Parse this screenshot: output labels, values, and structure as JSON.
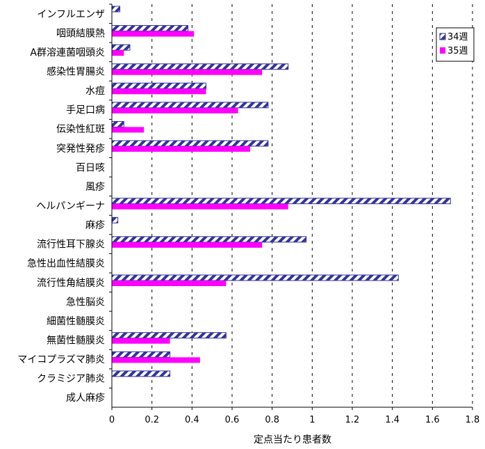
{
  "chart_data": {
    "type": "bar",
    "orientation": "horizontal",
    "categories": [
      "インフルエンザ",
      "咽頭結膜熱",
      "A群溶連菌咽頭炎",
      "感染性胃腸炎",
      "水痘",
      "手足口病",
      "伝染性紅斑",
      "突発性発疹",
      "百日咳",
      "風疹",
      "ヘルパンギーナ",
      "麻疹",
      "流行性耳下腺炎",
      "急性出血性結膜炎",
      "流行性角結膜炎",
      "急性脳炎",
      "細菌性髄膜炎",
      "無菌性髄膜炎",
      "マイコプラズマ肺炎",
      "クラミジア肺炎",
      "成人麻疹"
    ],
    "series": [
      {
        "name": "34週",
        "color": "#333399",
        "pattern": "diagonal-stripes",
        "values": [
          0.04,
          0.38,
          0.09,
          0.88,
          0.47,
          0.78,
          0.06,
          0.78,
          0,
          0,
          1.69,
          0.03,
          0.97,
          0,
          1.43,
          0,
          0,
          0.57,
          0.29,
          0.29,
          0
        ]
      },
      {
        "name": "35週",
        "color": "#ff00ff",
        "pattern": "solid",
        "values": [
          0,
          0.41,
          0.06,
          0.75,
          0.47,
          0.63,
          0.16,
          0.69,
          0,
          0,
          0.88,
          0,
          0.75,
          0,
          0.57,
          0,
          0,
          0.29,
          0.44,
          0,
          0
        ]
      }
    ],
    "xlabel": "定点当たり患者数",
    "xlim": [
      0,
      1.8
    ],
    "xticks": [
      "0",
      "0.2",
      "0.4",
      "0.6",
      "0.8",
      "1",
      "1.2",
      "1.4",
      "1.6",
      "1.8"
    ],
    "grid": "vertical-dashed",
    "legend_position": "top-right"
  }
}
